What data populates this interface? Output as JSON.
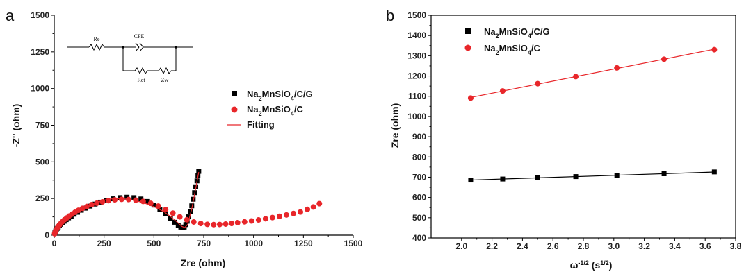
{
  "chart_data": [
    {
      "type": "scatter",
      "panel_label": "a",
      "xlabel": "Zre (ohm)",
      "ylabel": "-Z'' (ohm)",
      "xlim": [
        0,
        1500
      ],
      "ylim": [
        0,
        1500
      ],
      "xticks": [
        "0",
        "250",
        "500",
        "750",
        "1000",
        "1250",
        "1500"
      ],
      "yticks": [
        "0",
        "250",
        "500",
        "750",
        "1000",
        "1250",
        "1500"
      ],
      "legend_placement": "right-middle",
      "legend": {
        "s1": [
          "Na",
          "2",
          "MnSiO",
          "4",
          "/C/G"
        ],
        "s2": [
          "Na",
          "2",
          "MnSiO",
          "4",
          "/C"
        ],
        "s3": "Fitting"
      },
      "inset_circuit": {
        "re": "Re",
        "cpe": "CPE",
        "rct": "Rct",
        "zw": "Zw"
      },
      "series": [
        {
          "name": "Na2MnSiO4/C/G",
          "marker": "square",
          "color": "#000000",
          "x": [
            3,
            5,
            8,
            11,
            15,
            20,
            26,
            33,
            41,
            50,
            60,
            72,
            85,
            100,
            117,
            136,
            157,
            180,
            205,
            232,
            262,
            295,
            330,
            365,
            400,
            435,
            468,
            500,
            530,
            558,
            583,
            605,
            622,
            635,
            645,
            652,
            660,
            667,
            675,
            682,
            690,
            697,
            704,
            710,
            716,
            721,
            725
          ],
          "y": [
            15,
            22,
            30,
            38,
            46,
            55,
            64,
            74,
            84,
            95,
            106,
            118,
            130,
            143,
            156,
            170,
            184,
            198,
            212,
            225,
            237,
            248,
            256,
            259,
            256,
            247,
            230,
            205,
            175,
            145,
            115,
            88,
            67,
            55,
            50,
            55,
            72,
            95,
            125,
            160,
            200,
            245,
            290,
            330,
            370,
            405,
            435
          ]
        },
        {
          "name": "Na2MnSiO4/C",
          "marker": "circle",
          "color": "#e8262a",
          "x": [
            2,
            4,
            6,
            9,
            12,
            16,
            21,
            27,
            34,
            42,
            51,
            62,
            74,
            88,
            104,
            122,
            142,
            164,
            188,
            214,
            242,
            272,
            304,
            338,
            373,
            409,
            446,
            484,
            522,
            559,
            595,
            630,
            665,
            700,
            735,
            768,
            800,
            830,
            860,
            890,
            920,
            955,
            990,
            1025,
            1060,
            1095,
            1130,
            1165,
            1200,
            1235,
            1270,
            1300,
            1330
          ],
          "y": [
            10,
            17,
            25,
            33,
            42,
            51,
            61,
            71,
            82,
            93,
            105,
            117,
            130,
            143,
            156,
            170,
            183,
            196,
            208,
            218,
            227,
            235,
            241,
            244,
            243,
            239,
            230,
            217,
            198,
            175,
            150,
            125,
            105,
            90,
            80,
            74,
            72,
            73,
            76,
            80,
            85,
            91,
            97,
            104,
            112,
            120,
            129,
            138,
            148,
            158,
            176,
            192,
            215
          ]
        },
        {
          "name": "Fitting",
          "line": true,
          "color": "#e8262a",
          "x": [
            0,
            20,
            50,
            100,
            150,
            200,
            250,
            300,
            350,
            400,
            450,
            500,
            550,
            590,
            620,
            640,
            655,
            670,
            690,
            710,
            725
          ],
          "y": [
            0,
            55,
            98,
            150,
            190,
            220,
            240,
            250,
            248,
            238,
            220,
            195,
            160,
            120,
            85,
            60,
            52,
            75,
            180,
            320,
            430
          ]
        }
      ]
    },
    {
      "type": "line",
      "panel_label": "b",
      "xlabel": "ω-1/2 (s1/2)",
      "xlabel_parts": [
        "ω",
        "-1/2",
        " (s",
        "1/2",
        ")"
      ],
      "ylabel": "Zre (ohm)",
      "xlim": [
        1.8,
        3.8
      ],
      "ylim": [
        400,
        1500
      ],
      "xticks": [
        "2.0",
        "2.2",
        "2.4",
        "2.6",
        "2.8",
        "3.0",
        "3.2",
        "3.4",
        "3.6",
        "3.8"
      ],
      "yticks": [
        "400",
        "500",
        "600",
        "700",
        "800",
        "900",
        "1000",
        "1100",
        "1200",
        "1300",
        "1400",
        "1500"
      ],
      "legend_placement": "top-left",
      "legend": {
        "s1": [
          "Na",
          "2",
          "MnSiO",
          "4",
          "/C/G"
        ],
        "s2": [
          "Na",
          "2",
          "MnSiO",
          "4",
          "/C"
        ]
      },
      "series": [
        {
          "name": "Na2MnSiO4/C/G",
          "marker": "square",
          "color": "#000000",
          "x": [
            2.06,
            2.27,
            2.5,
            2.75,
            3.02,
            3.33,
            3.66
          ],
          "y": [
            686,
            691,
            697,
            703,
            709,
            717,
            726
          ]
        },
        {
          "name": "Na2MnSiO4/C",
          "marker": "circle",
          "color": "#e8262a",
          "x": [
            2.06,
            2.27,
            2.5,
            2.75,
            3.02,
            3.33,
            3.66
          ],
          "y": [
            1091,
            1126,
            1162,
            1197,
            1240,
            1283,
            1330
          ]
        }
      ]
    }
  ]
}
